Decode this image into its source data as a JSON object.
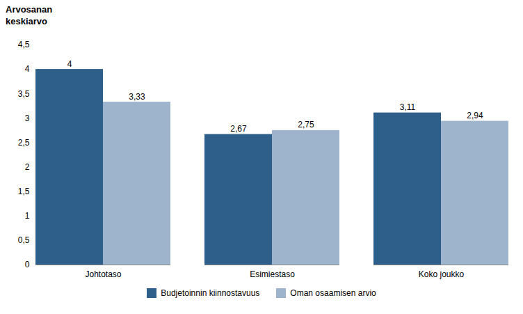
{
  "chart_data": {
    "type": "bar",
    "ylabel": "Arvosanan\nkeskiarvo",
    "categories": [
      "Johtotaso",
      "Esimiestaso",
      "Koko joukko"
    ],
    "series": [
      {
        "name": "Budjetoinnin kiinnostavuus",
        "color": "#2E5F8A",
        "values": [
          4.0,
          2.67,
          3.11
        ],
        "value_labels": [
          "4",
          "2,67",
          "3,11"
        ]
      },
      {
        "name": "Oman osaamisen arvio",
        "color": "#9DB4CC",
        "values": [
          3.33,
          2.75,
          2.94
        ],
        "value_labels": [
          "3,33",
          "2,75",
          "2,94"
        ]
      }
    ],
    "ylim": [
      0,
      4.5
    ],
    "yticks": [
      0,
      {
        "value": 0.5,
        "label": "0,5"
      },
      1,
      {
        "value": 1.5,
        "label": "1,5"
      },
      2,
      {
        "value": 2.5,
        "label": "2,5"
      },
      3,
      {
        "value": 3.5,
        "label": "3,5"
      },
      4,
      {
        "value": 4.5,
        "label": "4,5"
      }
    ],
    "grid": false,
    "legend": "bottom",
    "data_labels": true
  }
}
